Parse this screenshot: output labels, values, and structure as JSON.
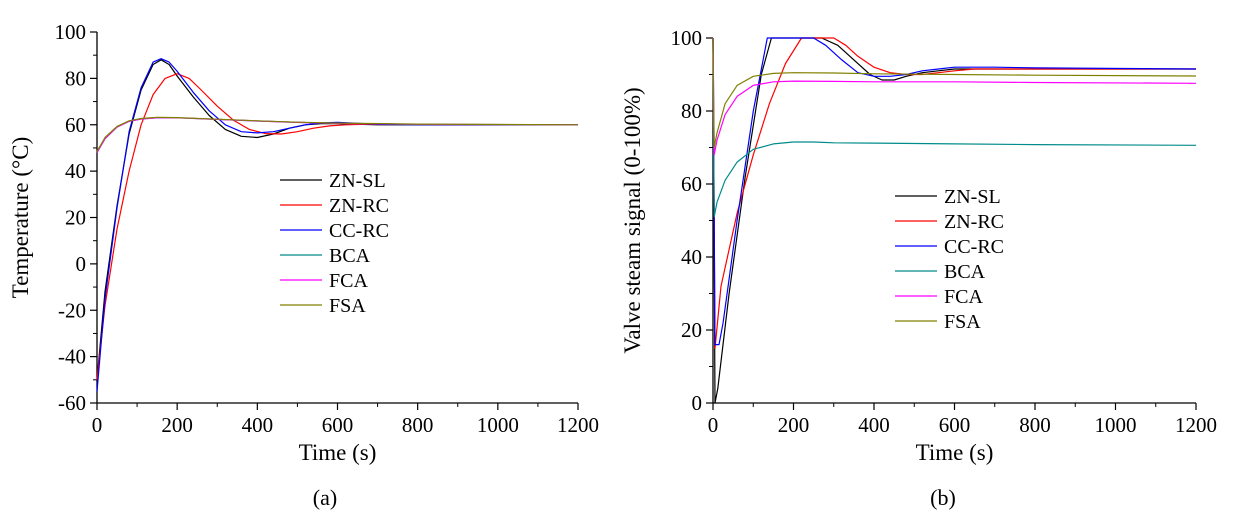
{
  "series_colors": {
    "ZN-SL": "#000000",
    "ZN-RC": "#ff0000",
    "CC-RC": "#0000ff",
    "BCA": "#008b8b",
    "FCA": "#ff00ff",
    "FSA": "#808000"
  },
  "chart_data": [
    {
      "type": "line",
      "panel_label": "(a)",
      "title": "",
      "xlabel": "Time (s)",
      "ylabel": "Temperature (°C)",
      "xlim": [
        0,
        1200
      ],
      "ylim": [
        -60,
        100
      ],
      "xticks": [
        0,
        200,
        400,
        600,
        800,
        1000,
        1200
      ],
      "yticks": [
        -60,
        -40,
        -20,
        0,
        20,
        40,
        60,
        80,
        100
      ],
      "grid": false,
      "legend": "center-right",
      "series": [
        {
          "name": "ZN-SL",
          "x": [
            0,
            20,
            50,
            80,
            110,
            140,
            160,
            180,
            200,
            240,
            280,
            320,
            360,
            400,
            440,
            480,
            520,
            560,
            600,
            640,
            700,
            800,
            1200
          ],
          "y": [
            -50,
            -12,
            25,
            56,
            75,
            86,
            88,
            86,
            81,
            72,
            64,
            58,
            55,
            54.5,
            56,
            58.5,
            60,
            60.5,
            60.5,
            60.3,
            60,
            60,
            60
          ]
        },
        {
          "name": "ZN-RC",
          "x": [
            0,
            20,
            50,
            80,
            110,
            140,
            170,
            200,
            230,
            260,
            300,
            340,
            380,
            420,
            460,
            500,
            540,
            580,
            620,
            680,
            760,
            900,
            1200
          ],
          "y": [
            -50,
            -18,
            15,
            40,
            60,
            73,
            80,
            82,
            80,
            75,
            68,
            62,
            58,
            56.2,
            56,
            57,
            58.5,
            59.5,
            60,
            60.3,
            60.2,
            60,
            60
          ]
        },
        {
          "name": "CC-RC",
          "x": [
            0,
            20,
            50,
            80,
            110,
            140,
            160,
            180,
            200,
            240,
            280,
            320,
            360,
            400,
            440,
            480,
            520,
            560,
            600,
            640,
            700,
            800,
            1200
          ],
          "y": [
            -55,
            -15,
            24,
            57,
            76,
            87,
            88.5,
            87,
            83,
            74,
            66,
            60,
            57,
            56.5,
            57,
            58.5,
            60,
            60.8,
            61,
            60.7,
            60.2,
            60,
            60
          ]
        },
        {
          "name": "BCA",
          "x": [
            0,
            20,
            50,
            80,
            110,
            150,
            200,
            300,
            400,
            500,
            600,
            800,
            1200
          ],
          "y": [
            48,
            54,
            59,
            61.5,
            62.5,
            63,
            63,
            62.3,
            61.6,
            61,
            60.6,
            60.2,
            60
          ]
        },
        {
          "name": "FCA",
          "x": [
            0,
            20,
            50,
            80,
            110,
            150,
            200,
            300,
            400,
            500,
            600,
            800,
            1200
          ],
          "y": [
            48,
            54,
            59,
            61.5,
            62.5,
            63,
            63,
            62.3,
            61.6,
            61,
            60.6,
            60.2,
            60
          ]
        },
        {
          "name": "FSA",
          "x": [
            0,
            20,
            50,
            80,
            110,
            150,
            200,
            300,
            400,
            500,
            600,
            800,
            1200
          ],
          "y": [
            48.5,
            54.5,
            59.3,
            61.7,
            62.7,
            63.2,
            63.1,
            62.4,
            61.7,
            61.1,
            60.7,
            60.3,
            60
          ]
        }
      ]
    },
    {
      "type": "line",
      "panel_label": "(b)",
      "title": "",
      "xlabel": "Time (s)",
      "ylabel": "Valve steam signal (0-100%)",
      "xlim": [
        0,
        1200
      ],
      "ylim": [
        0,
        100
      ],
      "xticks": [
        0,
        200,
        400,
        600,
        800,
        1000,
        1200
      ],
      "yticks": [
        0,
        20,
        40,
        60,
        80,
        100
      ],
      "grid": false,
      "legend": "center-right",
      "series": [
        {
          "name": "ZN-SL",
          "x": [
            0,
            5,
            12,
            40,
            80,
            120,
            145,
            200,
            270,
            310,
            350,
            390,
            420,
            450,
            480,
            520,
            560,
            600,
            650,
            700,
            800,
            1200
          ],
          "y": [
            100,
            0,
            4,
            30,
            62,
            90,
            100,
            100,
            100,
            98,
            94,
            90,
            88.5,
            88.5,
            89.5,
            90.5,
            91,
            91.5,
            91.5,
            91.5,
            91.5,
            91.5
          ]
        },
        {
          "name": "ZN-RC",
          "x": [
            0,
            5,
            20,
            60,
            100,
            140,
            180,
            220,
            250,
            300,
            330,
            360,
            400,
            440,
            480,
            520,
            560,
            600,
            650,
            700,
            800,
            1200
          ],
          "y": [
            100,
            15,
            32,
            52,
            68,
            82,
            93,
            100,
            100,
            100,
            98,
            95,
            92,
            90.5,
            90,
            90,
            90.5,
            91,
            91.5,
            91.5,
            91.5,
            91.5
          ]
        },
        {
          "name": "CC-RC",
          "x": [
            0,
            5,
            15,
            25,
            60,
            100,
            135,
            150,
            200,
            250,
            280,
            320,
            360,
            400,
            440,
            480,
            520,
            560,
            600,
            650,
            700,
            800,
            1200
          ],
          "y": [
            100,
            16,
            16,
            22,
            50,
            80,
            100,
            100,
            100,
            100,
            98,
            94,
            90.5,
            89.5,
            89.5,
            90,
            91,
            91.5,
            92,
            92,
            92,
            91.8,
            91.5
          ]
        },
        {
          "name": "BCA",
          "x": [
            0,
            3,
            10,
            30,
            60,
            100,
            150,
            200,
            250,
            300,
            400,
            600,
            800,
            1200
          ],
          "y": [
            100,
            51,
            55,
            61,
            66,
            69.5,
            71,
            71.5,
            71.5,
            71.3,
            71.2,
            71,
            70.8,
            70.6
          ]
        },
        {
          "name": "FCA",
          "x": [
            0,
            3,
            10,
            30,
            60,
            100,
            150,
            200,
            300,
            400,
            600,
            800,
            1200
          ],
          "y": [
            100,
            68,
            72,
            79,
            84,
            87,
            88,
            88.2,
            88.1,
            88,
            88,
            87.8,
            87.6
          ]
        },
        {
          "name": "FSA",
          "x": [
            0,
            3,
            10,
            30,
            60,
            100,
            150,
            200,
            300,
            400,
            600,
            800,
            1200
          ],
          "y": [
            100,
            70,
            74,
            82,
            87,
            89.5,
            90.3,
            90.5,
            90.4,
            90.2,
            90,
            89.8,
            89.6
          ]
        }
      ]
    }
  ]
}
